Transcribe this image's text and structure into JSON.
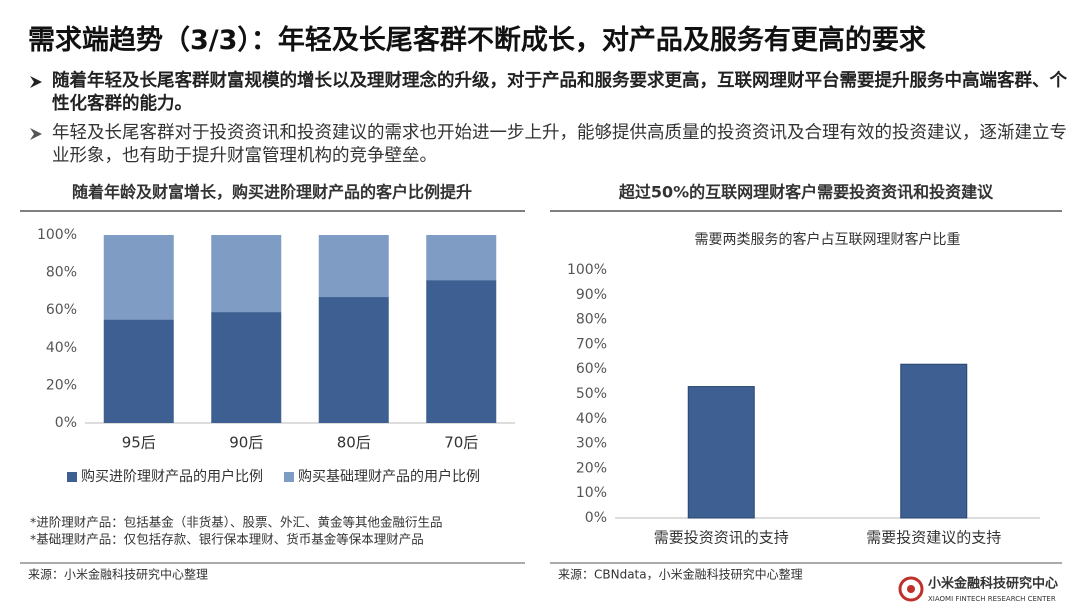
{
  "title": "需求端趋势（3/3）：年轻及长尾客群不断成长，对产品及服务有更高的要求",
  "bullets": [
    "随着年轻及长尾客群财富规模的增长以及理财理念的升级，对于产品和服务要求更高，互联网理财平台需要提升服务中高端客群、个性化客群的能力。",
    "年轻及长尾客群对于投资资讯和投资建议的需求也开始进一步上升，能够提供高质量的投资资讯及合理有效的投资建议，逐渐建立专业形象，也有助于提升财富管理机构的竞争壁垒。"
  ],
  "chart_data": [
    {
      "type": "bar",
      "stacked": true,
      "heading": "随着年龄及财富增长，购买进阶理财产品的客户比例提升",
      "categories": [
        "95后",
        "90后",
        "80后",
        "70后"
      ],
      "series": [
        {
          "name": "购买进阶理财产品的用户比例",
          "color": "#3d5f91",
          "values": [
            55,
            59,
            67,
            76
          ]
        },
        {
          "name": "购买基础理财产品的用户比例",
          "color": "#7f9cc5",
          "values": [
            45,
            41,
            33,
            24
          ]
        }
      ],
      "ylim": [
        0,
        100
      ],
      "yticks": [
        {
          "value": 0,
          "label": "0%"
        },
        {
          "value": 20,
          "label": "20%"
        },
        {
          "value": 40,
          "label": "40%"
        },
        {
          "value": 60,
          "label": "60%"
        },
        {
          "value": 80,
          "label": "80%"
        },
        {
          "value": 100,
          "label": "100%"
        }
      ],
      "grid": false,
      "legend": "bottom",
      "notes": [
        "*进阶理财产品：包括基金（非货基）、股票、外汇、黄金等其他金融衍生品",
        "*基础理财产品：仅包括存款、银行保本理财、货币基金等保本理财产品"
      ],
      "source": "来源：小米金融科技研究中心整理"
    },
    {
      "type": "bar",
      "heading": "超过50%的互联网理财客户需要投资资讯和投资建议",
      "title": "需要两类服务的客户占互联网理财客户比重",
      "categories": [
        "需要投资资讯的支持",
        "需要投资建议的支持"
      ],
      "values": [
        53,
        62
      ],
      "color": "#3d5f91",
      "ylim": [
        0,
        100
      ],
      "yticks": [
        {
          "value": 0,
          "label": "0%"
        },
        {
          "value": 10,
          "label": "10%"
        },
        {
          "value": 20,
          "label": "20%"
        },
        {
          "value": 30,
          "label": "30%"
        },
        {
          "value": 40,
          "label": "40%"
        },
        {
          "value": 50,
          "label": "50%"
        },
        {
          "value": 60,
          "label": "60%"
        },
        {
          "value": 70,
          "label": "70%"
        },
        {
          "value": 80,
          "label": "80%"
        },
        {
          "value": 90,
          "label": "90%"
        },
        {
          "value": 100,
          "label": "100%"
        }
      ],
      "grid": false,
      "source": "来源：CBNdata，小米金融科技研究中心整理"
    }
  ],
  "logo": {
    "name": "小米金融科技研究中心",
    "english": "XIAOMI FINTECH RESEARCH CENTER"
  }
}
